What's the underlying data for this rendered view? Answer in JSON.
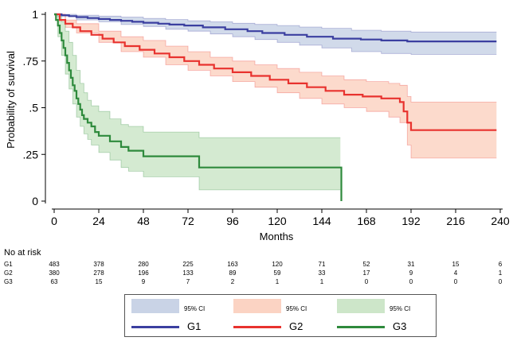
{
  "chart_data": {
    "type": "line",
    "title": "",
    "xlabel": "Months",
    "ylabel": "Probability of survival",
    "xlim": [
      0,
      240
    ],
    "ylim": [
      0,
      1
    ],
    "x_ticks": [
      0,
      24,
      48,
      72,
      96,
      120,
      144,
      168,
      192,
      216,
      240
    ],
    "x_tick_labels": [
      "0",
      "24",
      "48",
      "72",
      "96",
      "120",
      "144",
      "168",
      "192",
      "216",
      "240"
    ],
    "y_ticks": [
      0,
      0.25,
      0.5,
      0.75,
      1
    ],
    "y_tick_labels": [
      "0",
      ".25",
      ".5",
      ".75",
      "1"
    ],
    "grid": false,
    "series": [
      {
        "name": "G1",
        "color": "#3b3fa0",
        "ci_color": "#c9d3e6",
        "ci_label": "95% CI",
        "step": [
          [
            0,
            1.0
          ],
          [
            4,
            0.995
          ],
          [
            8,
            0.99
          ],
          [
            12,
            0.985
          ],
          [
            18,
            0.98
          ],
          [
            24,
            0.975
          ],
          [
            30,
            0.97
          ],
          [
            36,
            0.965
          ],
          [
            42,
            0.96
          ],
          [
            48,
            0.955
          ],
          [
            56,
            0.95
          ],
          [
            62,
            0.945
          ],
          [
            70,
            0.94
          ],
          [
            80,
            0.93
          ],
          [
            92,
            0.92
          ],
          [
            104,
            0.91
          ],
          [
            112,
            0.9
          ],
          [
            124,
            0.89
          ],
          [
            136,
            0.88
          ],
          [
            150,
            0.87
          ],
          [
            165,
            0.865
          ],
          [
            176,
            0.86
          ],
          [
            190,
            0.855
          ],
          [
            238,
            0.855
          ]
        ],
        "lower": [
          [
            0,
            1.0
          ],
          [
            4,
            0.99
          ],
          [
            12,
            0.97
          ],
          [
            24,
            0.96
          ],
          [
            36,
            0.945
          ],
          [
            48,
            0.935
          ],
          [
            60,
            0.92
          ],
          [
            72,
            0.91
          ],
          [
            84,
            0.895
          ],
          [
            96,
            0.88
          ],
          [
            108,
            0.865
          ],
          [
            120,
            0.85
          ],
          [
            132,
            0.835
          ],
          [
            144,
            0.82
          ],
          [
            160,
            0.8
          ],
          [
            176,
            0.79
          ],
          [
            192,
            0.785
          ],
          [
            238,
            0.785
          ]
        ],
        "upper": [
          [
            0,
            1.0
          ],
          [
            12,
            0.995
          ],
          [
            24,
            0.99
          ],
          [
            36,
            0.985
          ],
          [
            48,
            0.978
          ],
          [
            60,
            0.972
          ],
          [
            72,
            0.965
          ],
          [
            84,
            0.96
          ],
          [
            96,
            0.952
          ],
          [
            108,
            0.946
          ],
          [
            120,
            0.94
          ],
          [
            132,
            0.932
          ],
          [
            144,
            0.925
          ],
          [
            160,
            0.915
          ],
          [
            176,
            0.91
          ],
          [
            192,
            0.905
          ],
          [
            238,
            0.905
          ]
        ]
      },
      {
        "name": "G2",
        "color": "#e8322e",
        "ci_color": "#fbd3c3",
        "ci_label": "95% CI",
        "step": [
          [
            0,
            1.0
          ],
          [
            3,
            0.97
          ],
          [
            6,
            0.95
          ],
          [
            10,
            0.93
          ],
          [
            14,
            0.91
          ],
          [
            20,
            0.89
          ],
          [
            26,
            0.87
          ],
          [
            32,
            0.85
          ],
          [
            38,
            0.83
          ],
          [
            46,
            0.81
          ],
          [
            54,
            0.79
          ],
          [
            62,
            0.77
          ],
          [
            70,
            0.75
          ],
          [
            78,
            0.73
          ],
          [
            86,
            0.71
          ],
          [
            96,
            0.69
          ],
          [
            106,
            0.67
          ],
          [
            116,
            0.65
          ],
          [
            126,
            0.63
          ],
          [
            136,
            0.61
          ],
          [
            146,
            0.59
          ],
          [
            156,
            0.57
          ],
          [
            166,
            0.56
          ],
          [
            176,
            0.55
          ],
          [
            186,
            0.53
          ],
          [
            188,
            0.48
          ],
          [
            190,
            0.42
          ],
          [
            192,
            0.38
          ],
          [
            238,
            0.38
          ]
        ],
        "lower": [
          [
            0,
            1.0
          ],
          [
            6,
            0.93
          ],
          [
            12,
            0.9
          ],
          [
            24,
            0.85
          ],
          [
            36,
            0.8
          ],
          [
            48,
            0.77
          ],
          [
            60,
            0.73
          ],
          [
            72,
            0.7
          ],
          [
            84,
            0.67
          ],
          [
            96,
            0.64
          ],
          [
            108,
            0.61
          ],
          [
            120,
            0.58
          ],
          [
            132,
            0.55
          ],
          [
            144,
            0.52
          ],
          [
            156,
            0.5
          ],
          [
            168,
            0.48
          ],
          [
            180,
            0.45
          ],
          [
            186,
            0.42
          ],
          [
            190,
            0.3
          ],
          [
            192,
            0.23
          ],
          [
            238,
            0.23
          ]
        ],
        "upper": [
          [
            0,
            1.0
          ],
          [
            6,
            0.97
          ],
          [
            12,
            0.95
          ],
          [
            24,
            0.91
          ],
          [
            36,
            0.88
          ],
          [
            48,
            0.86
          ],
          [
            60,
            0.83
          ],
          [
            72,
            0.8
          ],
          [
            84,
            0.77
          ],
          [
            96,
            0.75
          ],
          [
            108,
            0.73
          ],
          [
            120,
            0.71
          ],
          [
            132,
            0.69
          ],
          [
            144,
            0.67
          ],
          [
            156,
            0.65
          ],
          [
            168,
            0.64
          ],
          [
            180,
            0.63
          ],
          [
            186,
            0.62
          ],
          [
            190,
            0.56
          ],
          [
            192,
            0.53
          ],
          [
            238,
            0.53
          ]
        ]
      },
      {
        "name": "G3",
        "color": "#2e8a3c",
        "ci_color": "#cde6c9",
        "ci_label": "95% CI",
        "step": [
          [
            0,
            1.0
          ],
          [
            1,
            0.97
          ],
          [
            2,
            0.94
          ],
          [
            3,
            0.9
          ],
          [
            4,
            0.86
          ],
          [
            5,
            0.82
          ],
          [
            6,
            0.78
          ],
          [
            7,
            0.74
          ],
          [
            8,
            0.7
          ],
          [
            9,
            0.66
          ],
          [
            10,
            0.62
          ],
          [
            11,
            0.59
          ],
          [
            12,
            0.55
          ],
          [
            13,
            0.52
          ],
          [
            14,
            0.49
          ],
          [
            15,
            0.46
          ],
          [
            16,
            0.44
          ],
          [
            18,
            0.42
          ],
          [
            20,
            0.4
          ],
          [
            22,
            0.37
          ],
          [
            24,
            0.35
          ],
          [
            30,
            0.32
          ],
          [
            36,
            0.29
          ],
          [
            40,
            0.27
          ],
          [
            48,
            0.24
          ],
          [
            78,
            0.18
          ],
          [
            154,
            0.18
          ],
          [
            154.5,
            0.0
          ]
        ],
        "lower": [
          [
            0,
            1.0
          ],
          [
            2,
            0.88
          ],
          [
            4,
            0.78
          ],
          [
            6,
            0.68
          ],
          [
            8,
            0.6
          ],
          [
            10,
            0.52
          ],
          [
            12,
            0.45
          ],
          [
            14,
            0.4
          ],
          [
            16,
            0.36
          ],
          [
            18,
            0.33
          ],
          [
            20,
            0.3
          ],
          [
            24,
            0.26
          ],
          [
            30,
            0.22
          ],
          [
            36,
            0.18
          ],
          [
            40,
            0.16
          ],
          [
            48,
            0.13
          ],
          [
            78,
            0.06
          ],
          [
            154,
            0.06
          ]
        ],
        "upper": [
          [
            0,
            1.0
          ],
          [
            2,
            0.99
          ],
          [
            4,
            0.96
          ],
          [
            6,
            0.91
          ],
          [
            8,
            0.85
          ],
          [
            10,
            0.78
          ],
          [
            12,
            0.7
          ],
          [
            14,
            0.63
          ],
          [
            16,
            0.58
          ],
          [
            18,
            0.54
          ],
          [
            20,
            0.51
          ],
          [
            24,
            0.48
          ],
          [
            30,
            0.44
          ],
          [
            36,
            0.41
          ],
          [
            40,
            0.4
          ],
          [
            48,
            0.37
          ],
          [
            78,
            0.34
          ],
          [
            154,
            0.34
          ]
        ]
      }
    ]
  },
  "risk_table": {
    "title": "No at risk",
    "months": [
      0,
      24,
      48,
      72,
      96,
      120,
      144,
      168,
      192,
      216,
      240
    ],
    "rows": [
      {
        "group": "G1",
        "values": [
          "483",
          "378",
          "280",
          "225",
          "163",
          "120",
          "71",
          "52",
          "31",
          "15",
          "6"
        ]
      },
      {
        "group": "G2",
        "values": [
          "380",
          "278",
          "196",
          "133",
          "89",
          "59",
          "33",
          "17",
          "9",
          "4",
          "1"
        ]
      },
      {
        "group": "G3",
        "values": [
          "63",
          "15",
          "9",
          "7",
          "2",
          "1",
          "1",
          "0",
          "0",
          "0",
          "0"
        ]
      }
    ]
  }
}
